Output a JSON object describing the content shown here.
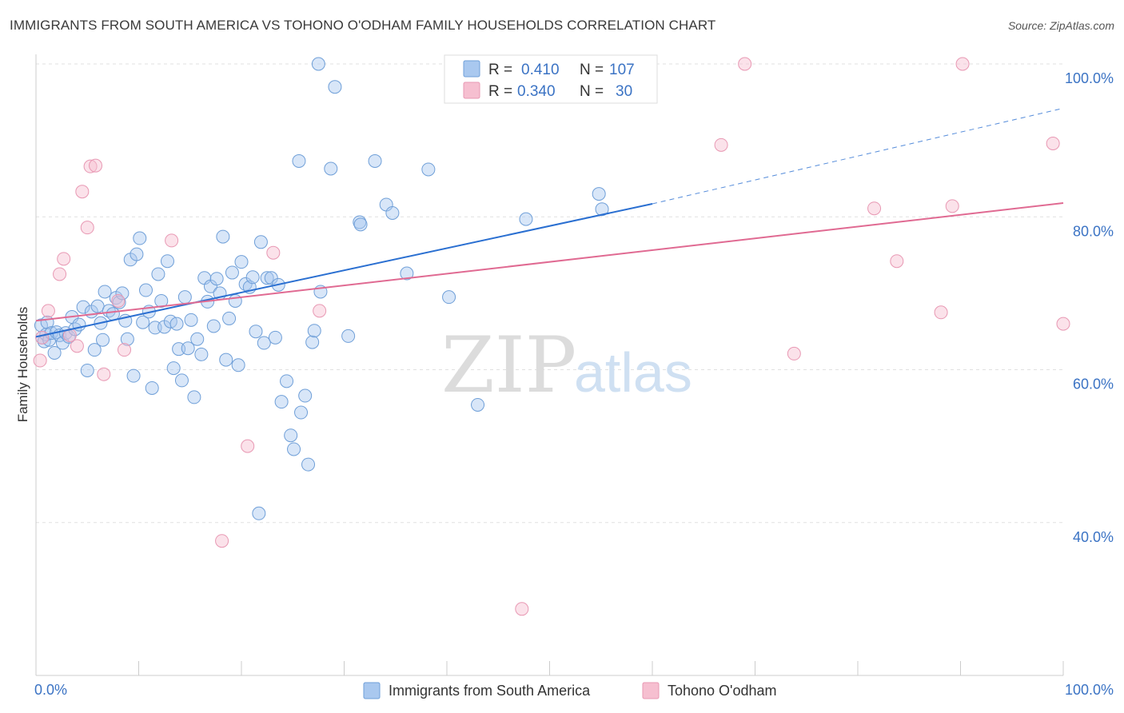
{
  "title": "IMMIGRANTS FROM SOUTH AMERICA VS TOHONO O'ODHAM FAMILY HOUSEHOLDS CORRELATION CHART",
  "source": "Source: ZipAtlas.com",
  "watermark": {
    "part1": "ZIP",
    "part2": "atlas"
  },
  "colors": {
    "blue_fill": "#a9c8ef",
    "blue_stroke": "#6f9fd8",
    "blue_line": "#2a6fd1",
    "pink_fill": "#f6bfd0",
    "pink_stroke": "#e898b3",
    "pink_line": "#e06a92",
    "tick_text": "#3b73c4",
    "grid": "#e0e0e0"
  },
  "chart_data": {
    "type": "scatter",
    "title": "IMMIGRANTS FROM SOUTH AMERICA VS TOHONO O'ODHAM FAMILY HOUSEHOLDS CORRELATION CHART",
    "xlabel": "",
    "ylabel": "Family Households",
    "xlim": [
      0,
      100
    ],
    "ylim": [
      20,
      100
    ],
    "x_tick_labels": [
      "0.0%",
      "100.0%"
    ],
    "y_ticks": [
      40,
      60,
      80,
      100
    ],
    "y_tick_labels": [
      "40.0%",
      "60.0%",
      "80.0%",
      "100.0%"
    ],
    "grid": "horizontal dashed",
    "legend_placement": "top-center",
    "stats": [
      {
        "r_label": "R =",
        "r_value": "0.410",
        "n_label": "N =",
        "n_value": "107"
      },
      {
        "r_label": "R =",
        "r_value": "0.340",
        "n_label": "N =",
        "n_value": "30"
      }
    ],
    "series": [
      {
        "name": "Immigrants from South America",
        "color": "#a9c8ef",
        "trend": {
          "x": [
            0,
            60
          ],
          "y": [
            64.3,
            81.7
          ],
          "dashed_to": [
            100,
            94.2
          ]
        },
        "points": [
          [
            0.5,
            65.8
          ],
          [
            0.6,
            64.2
          ],
          [
            0.8,
            63.7
          ],
          [
            1.0,
            64.6
          ],
          [
            1.1,
            66.2
          ],
          [
            1.3,
            63.9
          ],
          [
            1.5,
            64.8
          ],
          [
            1.8,
            62.2
          ],
          [
            2.0,
            64.9
          ],
          [
            2.3,
            64.5
          ],
          [
            2.6,
            63.5
          ],
          [
            2.9,
            64.8
          ],
          [
            3.2,
            64.3
          ],
          [
            3.5,
            66.9
          ],
          [
            3.8,
            65.3
          ],
          [
            4.2,
            65.9
          ],
          [
            4.6,
            68.2
          ],
          [
            5.0,
            59.9
          ],
          [
            5.4,
            67.6
          ],
          [
            5.7,
            62.6
          ],
          [
            6.0,
            68.3
          ],
          [
            6.3,
            66.1
          ],
          [
            6.5,
            63.9
          ],
          [
            6.7,
            70.2
          ],
          [
            7.1,
            67.7
          ],
          [
            7.5,
            67.3
          ],
          [
            7.8,
            69.4
          ],
          [
            8.1,
            68.8
          ],
          [
            8.4,
            70.0
          ],
          [
            8.7,
            66.4
          ],
          [
            8.9,
            64.0
          ],
          [
            9.2,
            74.4
          ],
          [
            9.5,
            59.2
          ],
          [
            9.8,
            75.1
          ],
          [
            10.1,
            77.2
          ],
          [
            10.4,
            66.2
          ],
          [
            10.7,
            70.4
          ],
          [
            11.0,
            67.6
          ],
          [
            11.3,
            57.6
          ],
          [
            11.6,
            65.5
          ],
          [
            11.9,
            72.5
          ],
          [
            12.2,
            69.0
          ],
          [
            12.5,
            65.6
          ],
          [
            12.8,
            74.2
          ],
          [
            13.1,
            66.3
          ],
          [
            13.4,
            60.2
          ],
          [
            13.7,
            66.0
          ],
          [
            13.9,
            62.7
          ],
          [
            14.2,
            58.6
          ],
          [
            14.5,
            69.5
          ],
          [
            14.8,
            62.8
          ],
          [
            15.1,
            66.5
          ],
          [
            15.4,
            56.4
          ],
          [
            15.7,
            64.0
          ],
          [
            16.1,
            62.0
          ],
          [
            16.4,
            72.0
          ],
          [
            16.7,
            68.9
          ],
          [
            17.0,
            70.9
          ],
          [
            17.3,
            65.7
          ],
          [
            17.6,
            71.9
          ],
          [
            17.9,
            70.0
          ],
          [
            18.2,
            77.4
          ],
          [
            18.5,
            61.3
          ],
          [
            18.8,
            66.7
          ],
          [
            19.1,
            72.7
          ],
          [
            19.4,
            69.0
          ],
          [
            19.7,
            60.6
          ],
          [
            20.0,
            74.1
          ],
          [
            20.4,
            71.2
          ],
          [
            20.8,
            70.8
          ],
          [
            21.1,
            72.1
          ],
          [
            21.4,
            65.0
          ],
          [
            21.7,
            41.2
          ],
          [
            21.9,
            76.7
          ],
          [
            22.2,
            63.5
          ],
          [
            22.5,
            72.0
          ],
          [
            22.9,
            72.0
          ],
          [
            23.3,
            64.2
          ],
          [
            23.6,
            71.1
          ],
          [
            23.9,
            55.8
          ],
          [
            24.4,
            58.5
          ],
          [
            24.8,
            51.4
          ],
          [
            25.1,
            49.6
          ],
          [
            25.6,
            87.3
          ],
          [
            25.8,
            54.4
          ],
          [
            26.2,
            56.6
          ],
          [
            26.5,
            47.6
          ],
          [
            26.9,
            63.6
          ],
          [
            27.1,
            65.1
          ],
          [
            27.7,
            70.2
          ],
          [
            28.7,
            86.3
          ],
          [
            29.1,
            97.0
          ],
          [
            30.4,
            64.4
          ],
          [
            31.5,
            79.3
          ],
          [
            31.6,
            79.0
          ],
          [
            33.0,
            87.3
          ],
          [
            34.1,
            81.6
          ],
          [
            34.7,
            80.5
          ],
          [
            36.1,
            72.6
          ],
          [
            38.2,
            86.2
          ],
          [
            40.2,
            69.5
          ],
          [
            43.0,
            55.4
          ],
          [
            47.7,
            79.7
          ],
          [
            54.8,
            83.0
          ],
          [
            55.1,
            81.0
          ],
          [
            27.5,
            100.0
          ],
          [
            59.5,
            100.0
          ]
        ]
      },
      {
        "name": "Tohono O'odham",
        "color": "#f6bfd0",
        "trend": {
          "x": [
            0,
            100
          ],
          "y": [
            66.4,
            81.8
          ]
        },
        "points": [
          [
            0.4,
            61.2
          ],
          [
            0.6,
            64.2
          ],
          [
            1.2,
            67.7
          ],
          [
            2.3,
            72.5
          ],
          [
            2.7,
            74.5
          ],
          [
            3.3,
            64.5
          ],
          [
            4.0,
            63.1
          ],
          [
            4.5,
            83.3
          ],
          [
            5.0,
            78.6
          ],
          [
            5.3,
            86.6
          ],
          [
            5.8,
            86.7
          ],
          [
            6.6,
            59.4
          ],
          [
            8.0,
            69.0
          ],
          [
            8.6,
            62.6
          ],
          [
            13.2,
            76.9
          ],
          [
            18.1,
            37.6
          ],
          [
            20.6,
            50.0
          ],
          [
            23.1,
            75.3
          ],
          [
            27.6,
            67.7
          ],
          [
            47.3,
            28.7
          ],
          [
            66.7,
            89.4
          ],
          [
            69.0,
            100.0
          ],
          [
            73.8,
            62.1
          ],
          [
            81.6,
            81.1
          ],
          [
            83.8,
            74.2
          ],
          [
            88.1,
            67.5
          ],
          [
            89.2,
            81.4
          ],
          [
            90.2,
            100.0
          ],
          [
            99.0,
            89.6
          ],
          [
            100.0,
            66.0
          ]
        ]
      }
    ]
  },
  "legend": {
    "items": [
      {
        "label": "Immigrants from South America"
      },
      {
        "label": "Tohono O'odham"
      }
    ]
  }
}
